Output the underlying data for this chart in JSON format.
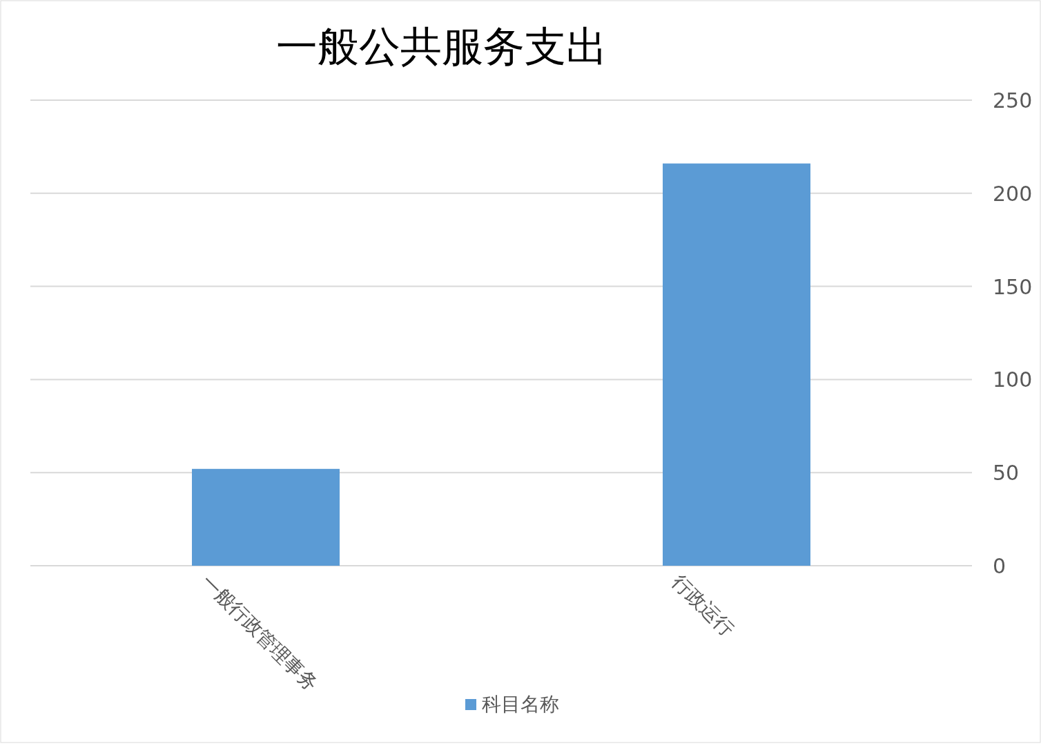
{
  "chart_data": {
    "type": "bar",
    "title": "一般公共服务支出",
    "categories": [
      "一般行政管理事务",
      "行政运行"
    ],
    "series": [
      {
        "name": "科目名称",
        "color": "#5b9bd5",
        "values": [
          52,
          216
        ]
      }
    ],
    "ylim": [
      0,
      250
    ],
    "yticks": [
      0,
      50,
      100,
      150,
      200,
      250
    ],
    "grid": "y",
    "legend": "bottom"
  }
}
